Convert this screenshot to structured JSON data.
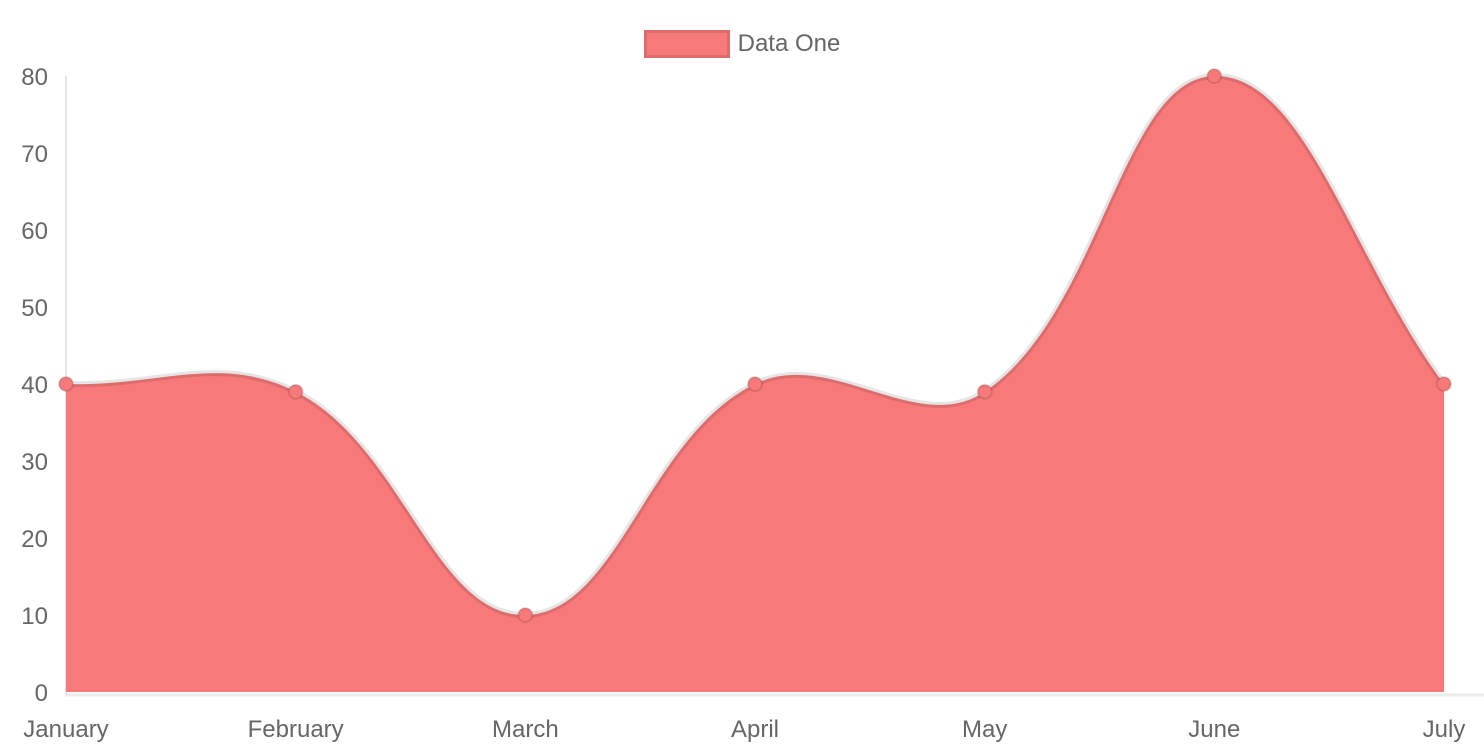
{
  "chart_data": {
    "type": "area",
    "title": "",
    "categories": [
      "January",
      "February",
      "March",
      "April",
      "May",
      "June",
      "July"
    ],
    "series": [
      {
        "name": "Data One",
        "values": [
          40,
          39,
          10,
          40,
          39,
          80,
          40
        ]
      }
    ],
    "ylim": [
      0,
      80
    ],
    "yticks": [
      80,
      70,
      60,
      50,
      40,
      30,
      20,
      10,
      0
    ],
    "grid": false,
    "legend_position": "top",
    "line_tension": 0.4,
    "colors": {
      "fill": "#f87979",
      "line_stroke": "rgba(0,0,0,0.1)",
      "point_fill": "#f87979",
      "point_stroke": "rgba(0,0,0,0.12)",
      "axis_line": "rgba(0,0,0,0.1)",
      "x_baseline": "rgba(0,0,0,0.08)",
      "label_text": "#666666",
      "background": "#ffffff"
    }
  }
}
